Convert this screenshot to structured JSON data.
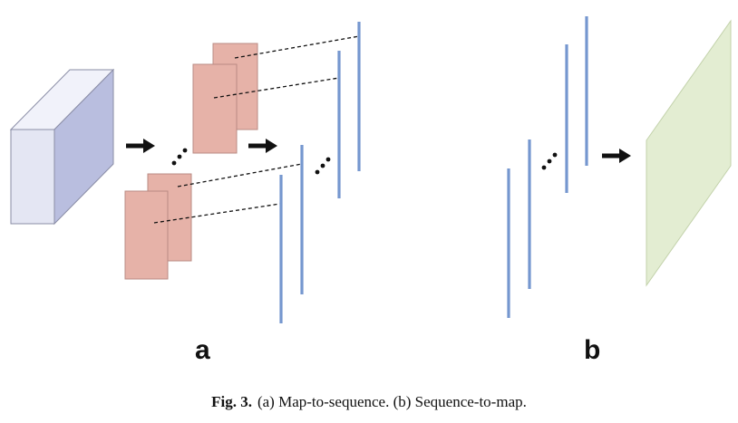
{
  "panels": {
    "a": {
      "label": "a"
    },
    "b": {
      "label": "b"
    }
  },
  "caption": {
    "fig_label": "Fig. 3.",
    "text": "(a) Map-to-sequence. (b) Sequence-to-map."
  },
  "colors": {
    "cuboid_front": "#e4e6f3",
    "cuboid_top": "#f1f2fa",
    "cuboid_side": "#b9bedf",
    "feature_map": "#e6b2a8",
    "sequence_line": "#7597cf",
    "output_map": "#e3edd2",
    "arrow": "#111111"
  }
}
